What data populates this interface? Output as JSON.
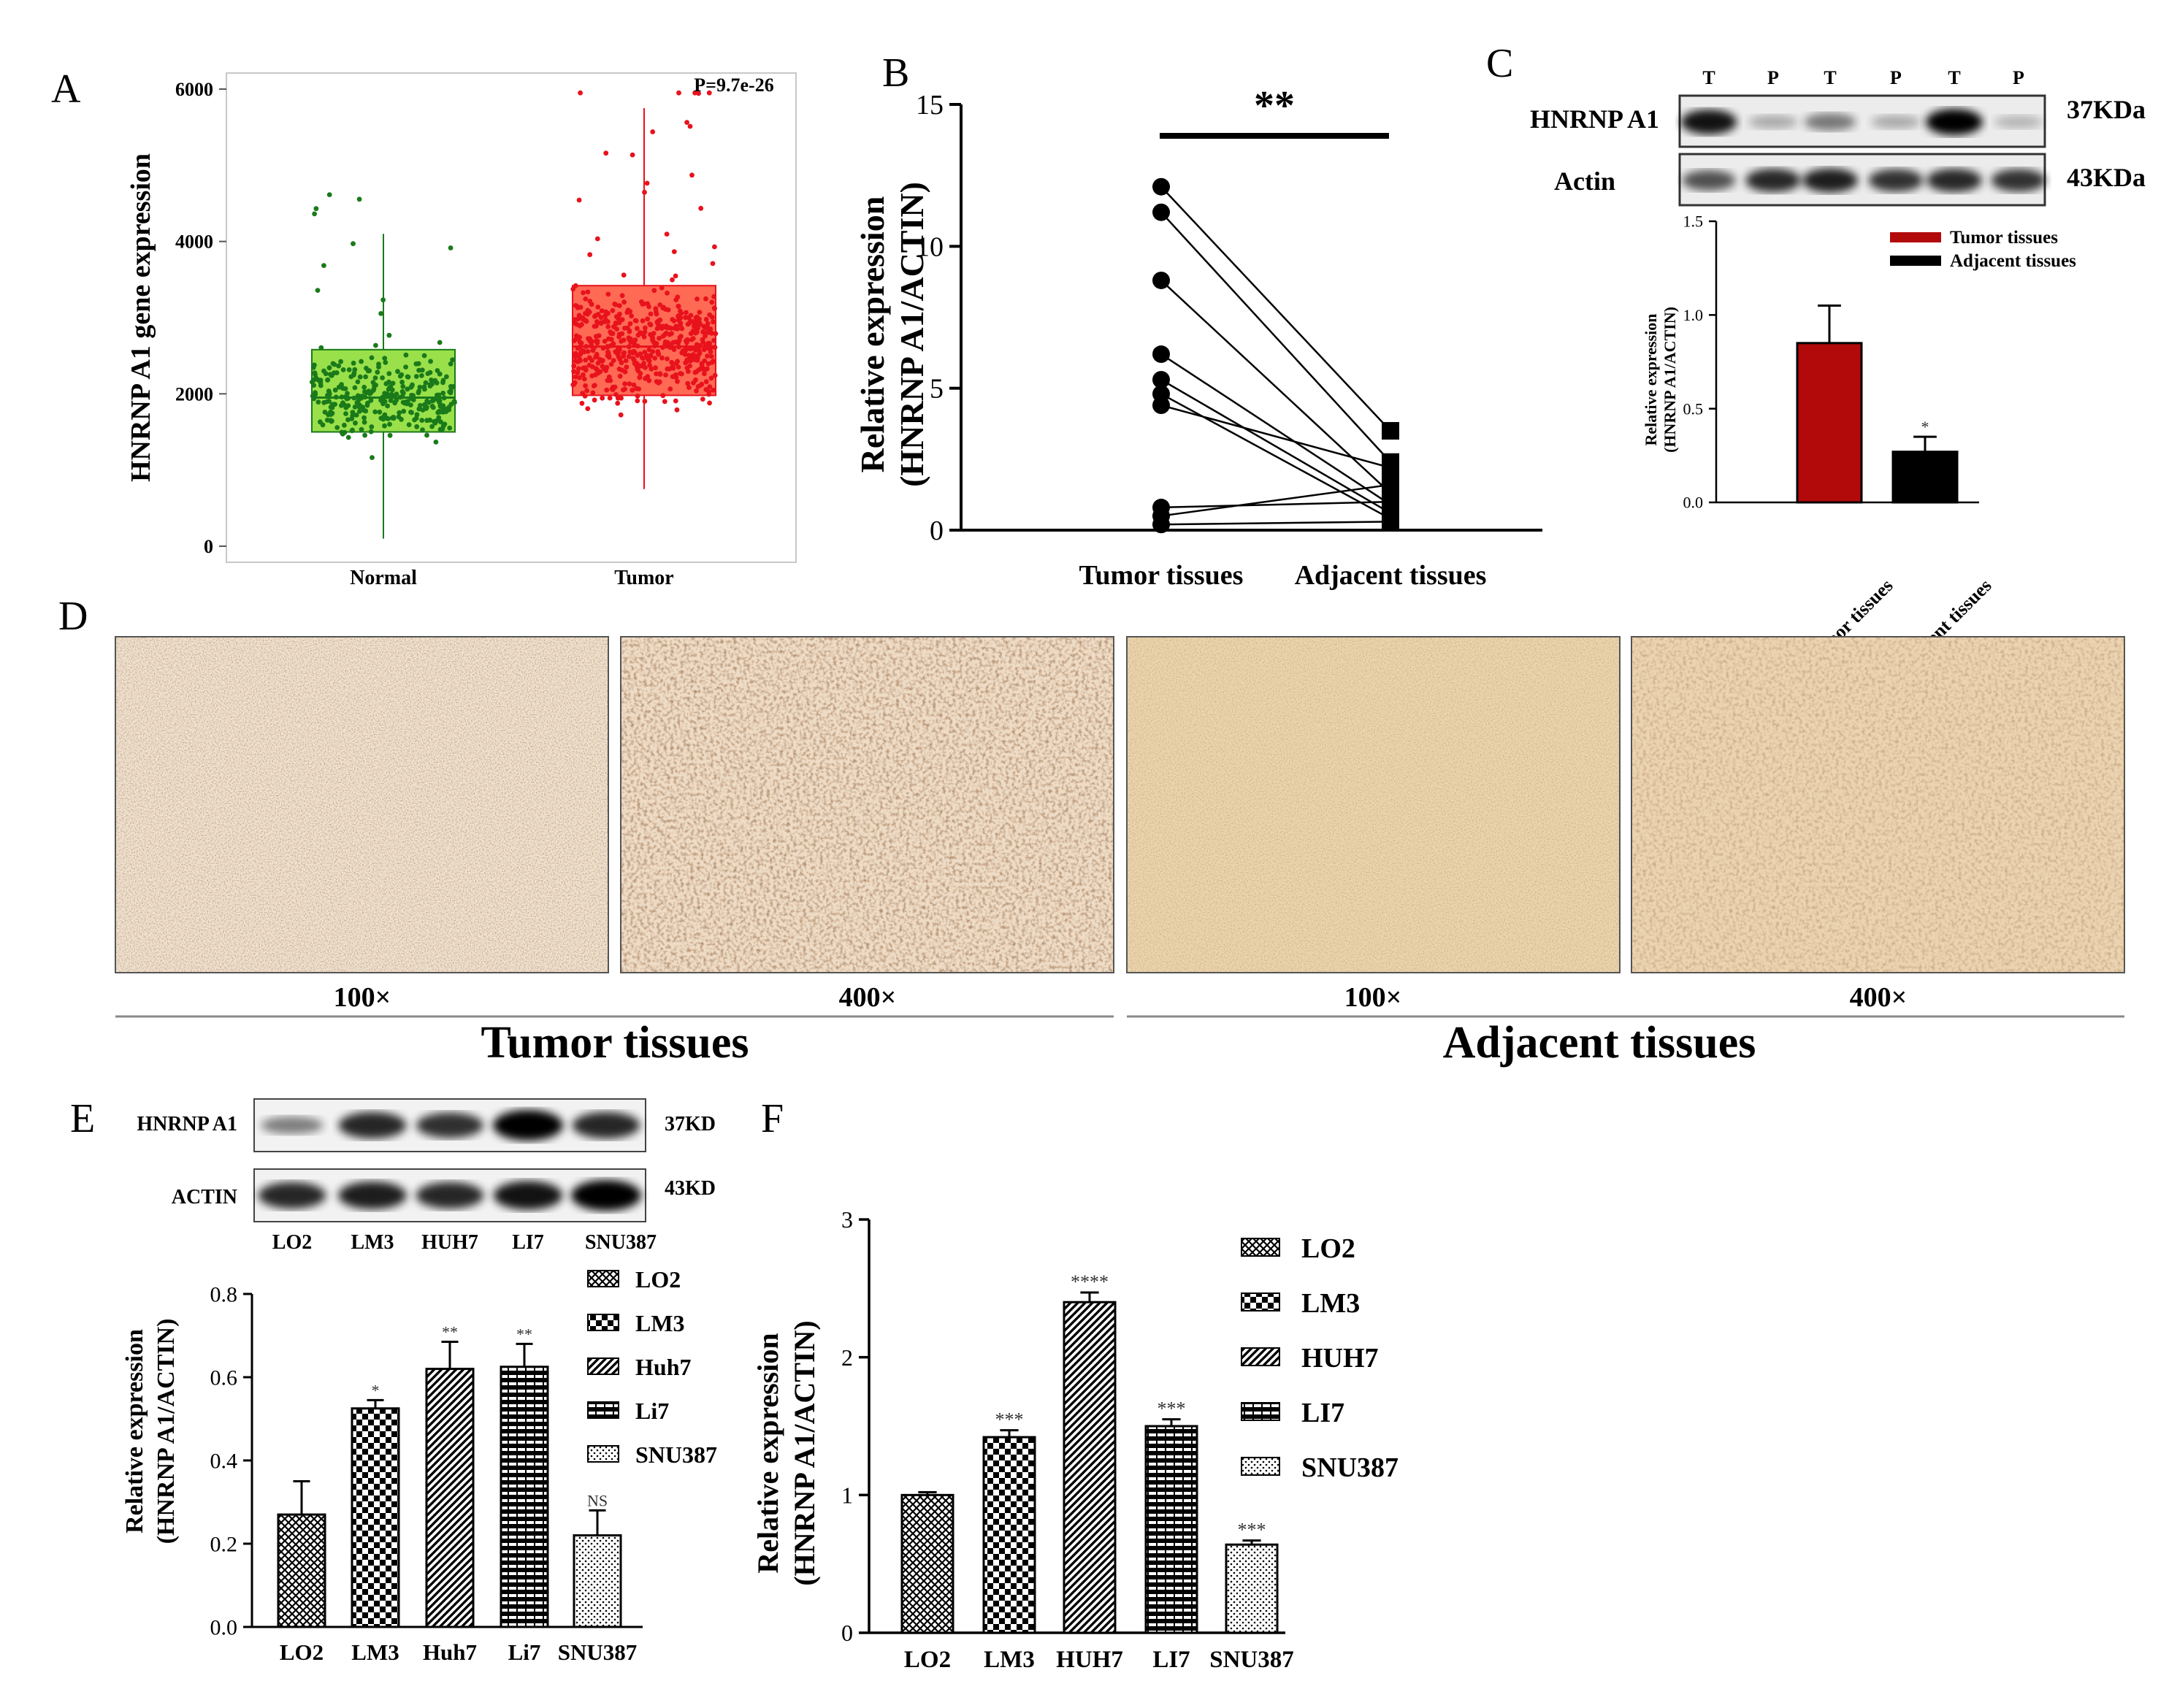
{
  "panels": {
    "A": "A",
    "B": "B",
    "C": "C",
    "D": "D",
    "E": "E",
    "F": "F"
  },
  "chart_data": [
    {
      "id": "A",
      "type": "box-scatter",
      "ylabel": "HNRNP A1 gene expression",
      "categories": [
        "Normal",
        "Tumor"
      ],
      "ylim": [
        0,
        6000
      ],
      "yticks": [
        0,
        2000,
        4000,
        6000
      ],
      "pvalue": "P=9.7e-26",
      "boxes": [
        {
          "name": "Normal",
          "min": 100,
          "q1": 1500,
          "median": 1950,
          "q3": 2580,
          "max": 4100,
          "color": "#99e04a",
          "point_color": "#1a7a1a"
        },
        {
          "name": "Tumor",
          "min": 750,
          "q1": 1980,
          "median": 2620,
          "q3": 3420,
          "max": 5750,
          "color": "#ff6a55",
          "point_color": "#e8121c"
        }
      ]
    },
    {
      "id": "B",
      "type": "paired-scatter",
      "ylabel_line1": "Relative expression",
      "ylabel_line2": "(HNRNP A1/ACTIN)",
      "categories": [
        "Tumor tissues",
        "Adjacent tissues"
      ],
      "ylim": [
        0,
        15
      ],
      "yticks": [
        0,
        5,
        10,
        15
      ],
      "significance": "**",
      "pairs": [
        [
          12.1,
          3.5
        ],
        [
          11.2,
          2.4
        ],
        [
          8.8,
          1.3
        ],
        [
          6.2,
          0.9
        ],
        [
          5.3,
          0.6
        ],
        [
          4.8,
          0.4
        ],
        [
          4.4,
          2.2
        ],
        [
          0.8,
          1.0
        ],
        [
          0.5,
          1.6
        ],
        [
          0.2,
          0.3
        ]
      ]
    },
    {
      "id": "C",
      "type": "bar",
      "ylabel_line1": "Relative expression",
      "ylabel_line2": "(HNRNP A1/ACTIN)",
      "categories": [
        "Tumor tissues",
        "Adjacent tissues"
      ],
      "values": [
        0.85,
        0.27
      ],
      "errors": [
        0.2,
        0.08
      ],
      "colors": [
        "#b20a0a",
        "#000000"
      ],
      "sig": [
        "",
        "*"
      ],
      "ylim": [
        0,
        1.5
      ],
      "yticks": [
        "0.0",
        "0.5",
        "1.0",
        "1.5"
      ],
      "legend": [
        "Tumor tissues",
        "Adjacent tissues"
      ]
    },
    {
      "id": "E",
      "type": "bar",
      "ylabel_line1": "Relative expression",
      "ylabel_line2": "(HNRNP A1/ACTIN)",
      "categories": [
        "LO2",
        "LM3",
        "Huh7",
        "Li7",
        "SNU387"
      ],
      "values": [
        0.27,
        0.525,
        0.62,
        0.625,
        0.22
      ],
      "errors": [
        0.08,
        0.02,
        0.065,
        0.055,
        0.06
      ],
      "sig": [
        "",
        "*",
        "**",
        "**",
        "NS"
      ],
      "ylim": [
        0,
        0.8
      ],
      "yticks": [
        "0.0",
        "0.2",
        "0.4",
        "0.6",
        "0.8"
      ],
      "legend": [
        "LO2",
        "LM3",
        "Huh7",
        "Li7",
        "SNU387"
      ]
    },
    {
      "id": "F",
      "type": "bar",
      "ylabel_line1": "Relative expression",
      "ylabel_line2": "(HNRNP A1/ACTIN)",
      "categories": [
        "LO2",
        "LM3",
        "HUH7",
        "LI7",
        "SNU387"
      ],
      "values": [
        1.0,
        1.42,
        2.4,
        1.5,
        0.64
      ],
      "errors": [
        0.02,
        0.05,
        0.07,
        0.05,
        0.03
      ],
      "sig": [
        "",
        "***",
        "****",
        "***",
        "***"
      ],
      "ylim": [
        0,
        3
      ],
      "yticks": [
        "0",
        "1",
        "2",
        "3"
      ],
      "legend": [
        "LO2",
        "LM3",
        "HUH7",
        "LI7",
        "SNU387"
      ]
    }
  ],
  "blot_c": {
    "lane_labels": [
      "T",
      "P",
      "T",
      "P",
      "T",
      "P"
    ],
    "rows": [
      {
        "name": "HNRNP A1",
        "size": "37KDa",
        "intensity": [
          0.9,
          0.15,
          0.4,
          0.15,
          1.0,
          0.1
        ]
      },
      {
        "name": "Actin",
        "size": "43KDa",
        "intensity": [
          0.6,
          0.8,
          0.85,
          0.75,
          0.8,
          0.75
        ]
      }
    ]
  },
  "blot_e": {
    "lane_labels": [
      "LO2",
      "LM3",
      "HUH7",
      "LI7",
      "SNU387"
    ],
    "rows": [
      {
        "name": "HNRNP A1",
        "size": "37KD",
        "intensity": [
          0.35,
          0.8,
          0.75,
          1.0,
          0.8
        ]
      },
      {
        "name": "ACTIN",
        "size": "43KD",
        "intensity": [
          0.8,
          0.85,
          0.8,
          0.9,
          1.0
        ]
      }
    ]
  },
  "histology": {
    "magnifications": [
      "100×",
      "400×",
      "100×",
      "400×"
    ],
    "groups": [
      "Tumor tissues",
      "Adjacent tissues"
    ]
  }
}
